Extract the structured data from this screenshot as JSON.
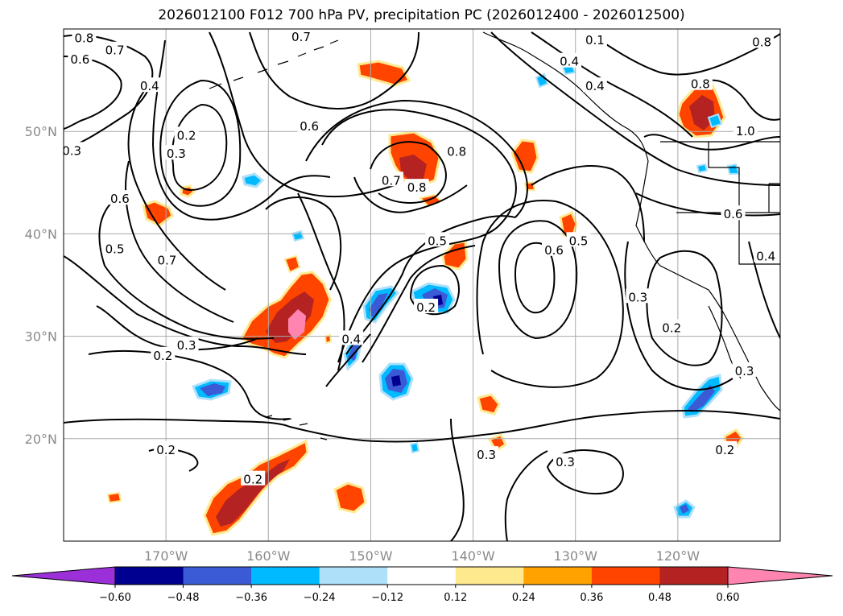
{
  "title": "2026012100 F012 700 hPa PV, precipitation PC (2026012400 - 2026012500)",
  "map": {
    "extent": {
      "lon_min": -180,
      "lon_max": -110,
      "lat_min": 10,
      "lat_max": 60
    },
    "gridlines": true,
    "lat_labels": [
      {
        "lat": 50,
        "text": "50°N"
      },
      {
        "lat": 40,
        "text": "40°N"
      },
      {
        "lat": 30,
        "text": "30°N"
      },
      {
        "lat": 20,
        "text": "20°N"
      }
    ],
    "lon_labels": [
      {
        "lon": -170,
        "text": "170°W"
      },
      {
        "lon": -160,
        "text": "160°W"
      },
      {
        "lon": -150,
        "text": "150°W"
      },
      {
        "lon": -140,
        "text": "140°W"
      },
      {
        "lon": -130,
        "text": "130°W"
      },
      {
        "lon": -120,
        "text": "120°W"
      }
    ],
    "contour_labels": [
      {
        "text": "0.8",
        "lon": -178,
        "lat": 59.1
      },
      {
        "text": "0.7",
        "lon": -175,
        "lat": 57.9
      },
      {
        "text": "0.6",
        "lon": -178.4,
        "lat": 57.0
      },
      {
        "text": "0.7",
        "lon": -156.8,
        "lat": 59.2
      },
      {
        "text": "0.4",
        "lon": -171.6,
        "lat": 54.4
      },
      {
        "text": "0.2",
        "lon": -168,
        "lat": 49.6
      },
      {
        "text": "0.3",
        "lon": -169,
        "lat": 47.8
      },
      {
        "text": "0.6",
        "lon": -156,
        "lat": 50.5
      },
      {
        "text": "0.3",
        "lon": -179.2,
        "lat": 48.1
      },
      {
        "text": "0.7",
        "lon": -148,
        "lat": 45.2
      },
      {
        "text": "0.8",
        "lon": -141.6,
        "lat": 48.0
      },
      {
        "text": "0.8",
        "lon": -145.5,
        "lat": 44.5
      },
      {
        "text": "0.6",
        "lon": -174.5,
        "lat": 43.4
      },
      {
        "text": "0.5",
        "lon": -175,
        "lat": 38.5
      },
      {
        "text": "0.7",
        "lon": -169.9,
        "lat": 37.4
      },
      {
        "text": "0.5",
        "lon": -143.5,
        "lat": 39.3
      },
      {
        "text": "0.6",
        "lon": -132.1,
        "lat": 38.4
      },
      {
        "text": "0.5",
        "lon": -129.7,
        "lat": 39.3
      },
      {
        "text": "0.2",
        "lon": -144.6,
        "lat": 32.8
      },
      {
        "text": "0.4",
        "lon": -151.9,
        "lat": 29.7
      },
      {
        "text": "0.3",
        "lon": -168,
        "lat": 29.1
      },
      {
        "text": "0.2",
        "lon": -170.3,
        "lat": 28.1
      },
      {
        "text": "0.2",
        "lon": -170,
        "lat": 18.9
      },
      {
        "text": "0.2",
        "lon": -161.5,
        "lat": 16.0
      },
      {
        "text": "0.3",
        "lon": -138.7,
        "lat": 18.4
      },
      {
        "text": "0.3",
        "lon": -131,
        "lat": 17.7
      },
      {
        "text": "0.2",
        "lon": -115.4,
        "lat": 18.9
      },
      {
        "text": "0.4",
        "lon": -130.6,
        "lat": 56.8
      },
      {
        "text": "0.4",
        "lon": -128.1,
        "lat": 54.4
      },
      {
        "text": "0.1",
        "lon": -128.1,
        "lat": 58.9
      },
      {
        "text": "0.8",
        "lon": -111.8,
        "lat": 58.7
      },
      {
        "text": "0.8",
        "lon": -117.8,
        "lat": 54.6
      },
      {
        "text": "1.0",
        "lon": -113.4,
        "lat": 50.0
      },
      {
        "text": "0.6",
        "lon": -114.6,
        "lat": 41.9
      },
      {
        "text": "0.4",
        "lon": -111.4,
        "lat": 37.8
      },
      {
        "text": "0.3",
        "lon": -123.9,
        "lat": 33.8
      },
      {
        "text": "0.2",
        "lon": -120.6,
        "lat": 30.8
      },
      {
        "text": "0.3",
        "lon": -113.5,
        "lat": 26.6
      }
    ]
  },
  "colorbar": {
    "colors": [
      "#9b30d9",
      "#2a3cd0",
      "#3b5bd6",
      "#16b4ff",
      "#aee0f8",
      "#ffffff",
      "#ffe38a",
      "#ffa500",
      "#ff4500",
      "#b22222",
      "#ff80b0"
    ],
    "band_colors": [
      "#9b30d9",
      "#000090",
      "#3b5bd6",
      "#00baff",
      "#aee0fa",
      "#ffffff",
      "#ffe98f",
      "#ffa200",
      "#ff4400",
      "#b52222",
      "#ff85b0"
    ],
    "tick_labels": [
      "−0.60",
      "−0.48",
      "−0.36",
      "−0.24",
      "−0.12",
      "0.12",
      "0.24",
      "0.36",
      "0.48",
      "0.60"
    ]
  }
}
